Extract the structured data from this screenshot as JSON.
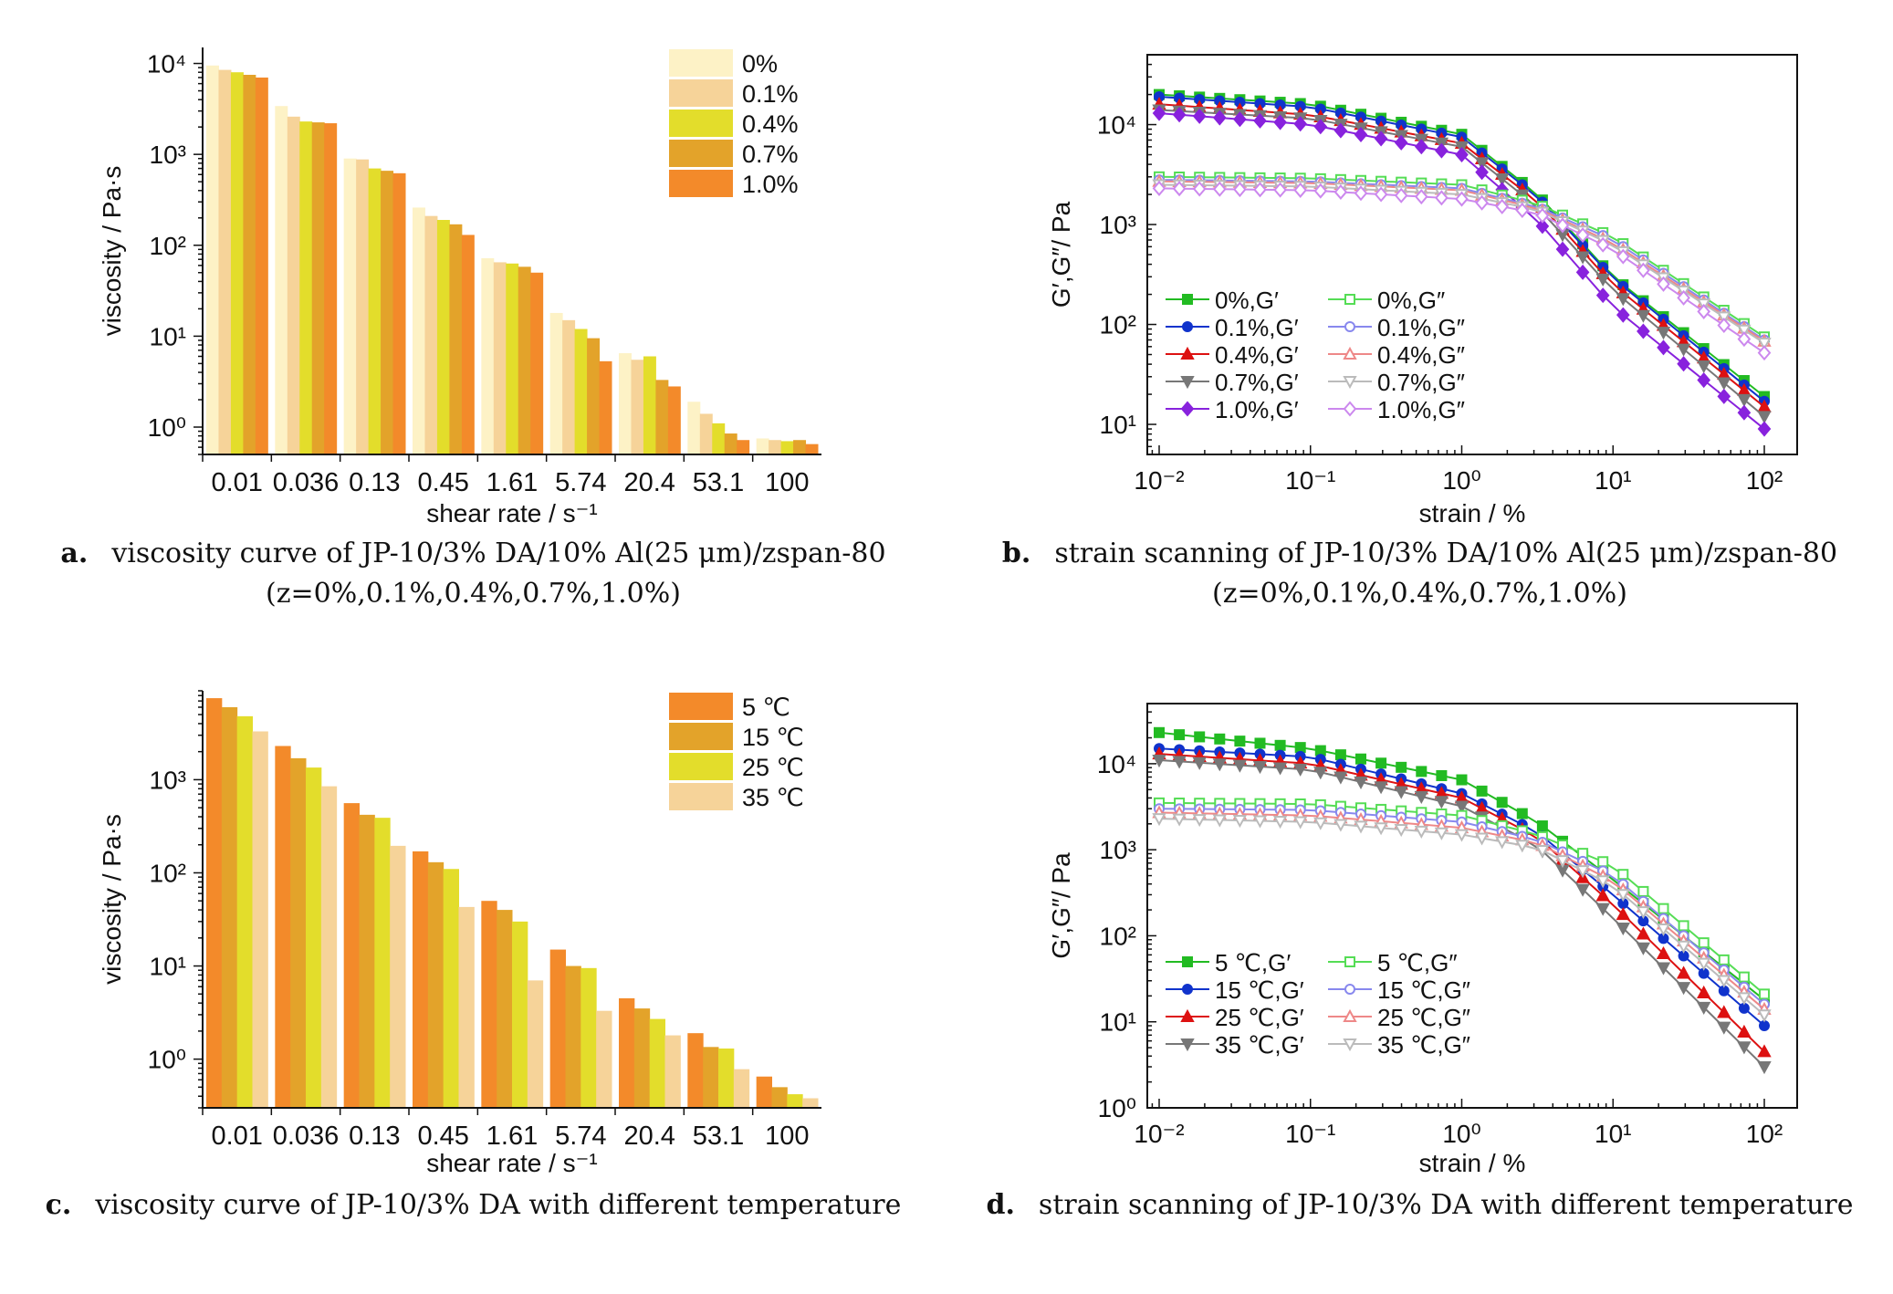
{
  "colors": {
    "bar_0": "#fdf2c6",
    "bar_01": "#f6d399",
    "bar_04": "#e3dd2b",
    "bar_07": "#e3a32a",
    "bar_10": "#f38a2a",
    "green": "#22bb22",
    "blue": "#1033cc",
    "red": "#dd1111",
    "gray": "#777777",
    "purple": "#8822dd",
    "green_light": "#55dd55",
    "blue_light": "#8888ee",
    "red_light": "#ee8888",
    "gray_light": "#bbbbbb",
    "purple_light": "#cc88ee"
  },
  "panels": {
    "a": {
      "caption_letter": "a.",
      "caption_line1": "viscosity curve of JP-10/3% DA/10% Al(25 μm)/zspan-80",
      "caption_line2": "(z=0%,0.1%,0.4%,0.7%,1.0%)"
    },
    "b": {
      "caption_letter": "b.",
      "caption_line1": "strain scanning of JP-10/3% DA/10% Al(25 μm)/zspan-80",
      "caption_line2": "(z=0%,0.1%,0.4%,0.7%,1.0%)"
    },
    "c": {
      "caption_letter": "c.",
      "caption_line1": "viscosity curve of JP-10/3% DA with different temperature"
    },
    "d": {
      "caption_letter": "d.",
      "caption_line1": "strain scanning of JP-10/3% DA with different temperature"
    }
  },
  "chart_data": [
    {
      "id": "a",
      "type": "bar",
      "xlabel": "shear rate / s⁻¹",
      "ylabel": "viscosity / Pa·s",
      "yscale": "log",
      "ylim": [
        0.5,
        15000
      ],
      "yticks": [
        "10⁰",
        "10¹",
        "10²",
        "10³",
        "10⁴"
      ],
      "legend_position": "top-right",
      "categories": [
        "0.01",
        "0.036",
        "0.13",
        "0.45",
        "1.61",
        "5.74",
        "20.4",
        "53.1",
        "100"
      ],
      "series": [
        {
          "name": "0%",
          "color": "#fdf2c6",
          "values": [
            9500,
            3400,
            900,
            260,
            72,
            18,
            6.5,
            1.9,
            0.75
          ]
        },
        {
          "name": "0.1%",
          "color": "#f6d399",
          "values": [
            8500,
            2600,
            880,
            210,
            65,
            15,
            5.5,
            1.4,
            0.72
          ]
        },
        {
          "name": "0.4%",
          "color": "#e3dd2b",
          "values": [
            8000,
            2300,
            700,
            190,
            63,
            12,
            6.0,
            1.1,
            0.7
          ]
        },
        {
          "name": "0.7%",
          "color": "#e3a32a",
          "values": [
            7500,
            2250,
            660,
            170,
            58,
            9.5,
            3.3,
            0.85,
            0.72
          ]
        },
        {
          "name": "1.0%",
          "color": "#f38a2a",
          "values": [
            7000,
            2200,
            620,
            130,
            50,
            5.3,
            2.8,
            0.72,
            0.65
          ]
        }
      ]
    },
    {
      "id": "b",
      "type": "line",
      "xlabel": "strain / %",
      "ylabel": "G′,G″/ Pa",
      "xscale": "log",
      "yscale": "log",
      "xlim": [
        0.01,
        100
      ],
      "ylim": [
        5,
        50000
      ],
      "xticks": [
        "10⁻²",
        "10⁻¹",
        "10⁰",
        "10¹",
        "10²"
      ],
      "yticks": [
        "10¹",
        "10²",
        "10³",
        "10⁴"
      ],
      "legend_position": "bottom-left",
      "series": [
        {
          "name": "0%,G′",
          "color": "#22bb22",
          "marker": "square",
          "filled": true,
          "x": [
            0.01,
            0.1,
            1,
            3.16,
            10,
            100
          ],
          "y": [
            20000,
            16000,
            8000,
            2000,
            300,
            19
          ]
        },
        {
          "name": "0.1%,G′",
          "color": "#1033cc",
          "marker": "circle",
          "filled": true,
          "x": [
            0.01,
            0.1,
            1,
            3.16,
            10,
            100
          ],
          "y": [
            19000,
            15000,
            7500,
            1900,
            290,
            17
          ]
        },
        {
          "name": "0.4%,G′",
          "color": "#dd1111",
          "marker": "triangle",
          "filled": true,
          "x": [
            0.01,
            0.1,
            1,
            3.16,
            10,
            100
          ],
          "y": [
            16000,
            12500,
            6500,
            1700,
            250,
            15
          ]
        },
        {
          "name": "0.7%,G′",
          "color": "#777777",
          "marker": "triangle-down",
          "filled": true,
          "x": [
            0.01,
            0.1,
            1,
            3.16,
            10,
            100
          ],
          "y": [
            14000,
            11500,
            6000,
            1500,
            220,
            12
          ]
        },
        {
          "name": "1.0%,G′",
          "color": "#8822dd",
          "marker": "diamond",
          "filled": true,
          "x": [
            0.01,
            0.1,
            1,
            3.16,
            10,
            100
          ],
          "y": [
            13000,
            10000,
            5000,
            1100,
            150,
            9
          ]
        },
        {
          "name": "0%,G″",
          "color": "#55dd55",
          "marker": "square",
          "filled": false,
          "x": [
            0.01,
            0.1,
            1,
            3.16,
            10,
            100
          ],
          "y": [
            3000,
            2900,
            2500,
            1600,
            750,
            75
          ]
        },
        {
          "name": "0.1%,G″",
          "color": "#8888ee",
          "marker": "circle",
          "filled": false,
          "x": [
            0.01,
            0.1,
            1,
            3.16,
            10,
            100
          ],
          "y": [
            2800,
            2700,
            2300,
            1500,
            700,
            70
          ]
        },
        {
          "name": "0.4%,G″",
          "color": "#ee8888",
          "marker": "triangle",
          "filled": false,
          "x": [
            0.01,
            0.1,
            1,
            3.16,
            10,
            100
          ],
          "y": [
            2700,
            2600,
            2200,
            1450,
            650,
            68
          ]
        },
        {
          "name": "0.7%,G″",
          "color": "#bbbbbb",
          "marker": "triangle-down",
          "filled": false,
          "x": [
            0.01,
            0.1,
            1,
            3.16,
            10,
            100
          ],
          "y": [
            2500,
            2400,
            2000,
            1400,
            620,
            65
          ]
        },
        {
          "name": "1.0%,G″",
          "color": "#cc88ee",
          "marker": "diamond",
          "filled": false,
          "x": [
            0.01,
            0.1,
            1,
            3.16,
            10,
            100
          ],
          "y": [
            2300,
            2200,
            1800,
            1300,
            560,
            52
          ]
        }
      ]
    },
    {
      "id": "c",
      "type": "bar",
      "xlabel": "shear rate / s⁻¹",
      "ylabel": "viscosity / Pa·s",
      "yscale": "log",
      "ylim": [
        0.3,
        9000
      ],
      "yticks": [
        "10⁰",
        "10¹",
        "10²",
        "10³"
      ],
      "legend_position": "top-right",
      "categories": [
        "0.01",
        "0.036",
        "0.13",
        "0.45",
        "1.61",
        "5.74",
        "20.4",
        "53.1",
        "100"
      ],
      "series": [
        {
          "name": "5 ℃",
          "color": "#f38a2a",
          "values": [
            7500,
            2300,
            560,
            170,
            50,
            15,
            4.5,
            1.9,
            0.65
          ]
        },
        {
          "name": "15 ℃",
          "color": "#e3a32a",
          "values": [
            6000,
            1700,
            420,
            130,
            40,
            10,
            3.5,
            1.35,
            0.5
          ]
        },
        {
          "name": "25 ℃",
          "color": "#e3dd2b",
          "values": [
            4800,
            1350,
            390,
            110,
            30,
            9.5,
            2.7,
            1.3,
            0.42
          ]
        },
        {
          "name": "35 ℃",
          "color": "#f6d399",
          "values": [
            3300,
            850,
            195,
            43,
            7,
            3.3,
            1.8,
            0.78,
            0.38
          ]
        }
      ]
    },
    {
      "id": "d",
      "type": "line",
      "xlabel": "strain / %",
      "ylabel": "G′,G″/ Pa",
      "xscale": "log",
      "yscale": "log",
      "xlim": [
        0.01,
        100
      ],
      "ylim": [
        1,
        50000
      ],
      "xticks": [
        "10⁻²",
        "10⁻¹",
        "10⁰",
        "10¹",
        "10²"
      ],
      "yticks": [
        "10⁰",
        "10¹",
        "10²",
        "10³",
        "10⁴"
      ],
      "legend_position": "bottom-left",
      "series": [
        {
          "name": "5 ℃,G′",
          "color": "#22bb22",
          "marker": "square",
          "filled": true,
          "x": [
            0.01,
            0.1,
            1,
            3.16,
            10,
            100
          ],
          "y": [
            23000,
            15000,
            6500,
            2100,
            450,
            18
          ]
        },
        {
          "name": "15 ℃,G′",
          "color": "#1033cc",
          "marker": "circle",
          "filled": true,
          "x": [
            0.01,
            0.1,
            1,
            3.16,
            10,
            100
          ],
          "y": [
            15000,
            12000,
            4500,
            1600,
            300,
            9
          ]
        },
        {
          "name": "25 ℃,G′",
          "color": "#dd1111",
          "marker": "triangle",
          "filled": true,
          "x": [
            0.01,
            0.1,
            1,
            3.16,
            10,
            100
          ],
          "y": [
            13000,
            10000,
            4000,
            1400,
            230,
            4.5
          ]
        },
        {
          "name": "35 ℃,G′",
          "color": "#777777",
          "marker": "triangle-down",
          "filled": true,
          "x": [
            0.01,
            0.1,
            1,
            3.16,
            10,
            100
          ],
          "y": [
            11000,
            8500,
            3200,
            1100,
            160,
            3
          ]
        },
        {
          "name": "5 ℃,G″",
          "color": "#55dd55",
          "marker": "square",
          "filled": false,
          "x": [
            0.01,
            0.1,
            1,
            3.16,
            10,
            100
          ],
          "y": [
            3500,
            3400,
            2500,
            1500,
            650,
            21
          ]
        },
        {
          "name": "15 ℃,G″",
          "color": "#8888ee",
          "marker": "circle",
          "filled": false,
          "x": [
            0.01,
            0.1,
            1,
            3.16,
            10,
            100
          ],
          "y": [
            3000,
            2900,
            2100,
            1300,
            500,
            16
          ]
        },
        {
          "name": "25 ℃,G″",
          "color": "#ee8888",
          "marker": "triangle",
          "filled": false,
          "x": [
            0.01,
            0.1,
            1,
            3.16,
            10,
            100
          ],
          "y": [
            2700,
            2500,
            1800,
            1200,
            430,
            14
          ]
        },
        {
          "name": "35 ℃,G″",
          "color": "#bbbbbb",
          "marker": "triangle-down",
          "filled": false,
          "x": [
            0.01,
            0.1,
            1,
            3.16,
            10,
            100
          ],
          "y": [
            2300,
            2100,
            1500,
            1050,
            380,
            12
          ]
        }
      ]
    }
  ]
}
